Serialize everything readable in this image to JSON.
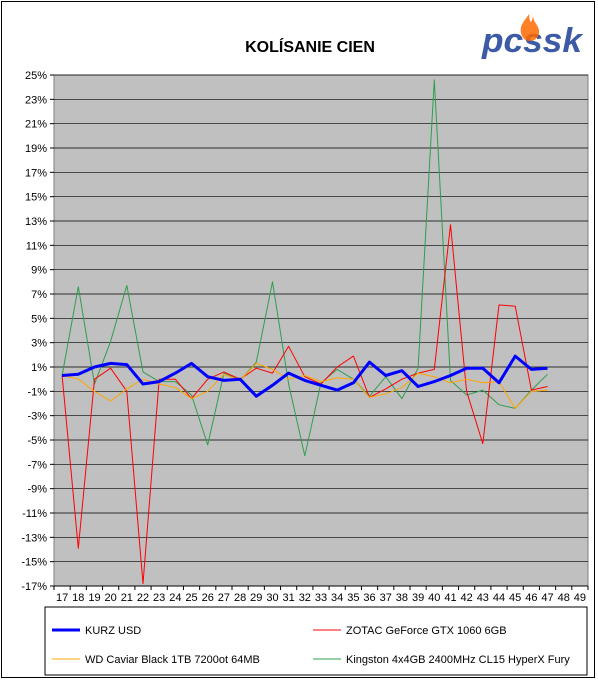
{
  "logo": {
    "text": "pcssk",
    "color": "#3c5aa6",
    "flame_color": "#ff6a00"
  },
  "chart_data": {
    "type": "line",
    "title": "KOLÍSANIE CIEN",
    "xlabel": "",
    "ylabel": "",
    "x": [
      17,
      18,
      19,
      20,
      21,
      22,
      23,
      24,
      25,
      26,
      27,
      28,
      29,
      30,
      31,
      32,
      33,
      34,
      35,
      36,
      37,
      38,
      39,
      40,
      41,
      42,
      43,
      44,
      45,
      46,
      47,
      48,
      49
    ],
    "ylim": [
      -17,
      25
    ],
    "yticks": [
      25,
      23,
      21,
      19,
      17,
      15,
      13,
      11,
      9,
      7,
      5,
      3,
      1,
      -1,
      -3,
      -5,
      -7,
      -9,
      -11,
      -13,
      -15,
      -17
    ],
    "ytick_labels": [
      "25%",
      "23%",
      "21%",
      "19%",
      "17%",
      "15%",
      "13%",
      "11%",
      "9%",
      "7%",
      "5%",
      "3%",
      "1%",
      "-1%",
      "-3%",
      "-5%",
      "-7%",
      "-9%",
      "-11%",
      "-13%",
      "-15%",
      "-17%"
    ],
    "plot_background": "#c0c0c0",
    "grid": true,
    "legend_position": "bottom",
    "series": [
      {
        "name": "KURZ USD",
        "color": "#0000ff",
        "width": 3,
        "x": [
          17,
          18,
          19,
          20,
          21,
          22,
          23,
          24,
          25,
          26,
          27,
          28,
          29,
          30,
          31,
          32,
          33,
          34,
          35,
          36,
          37,
          38,
          39,
          40,
          41,
          42,
          43,
          44,
          45,
          46,
          47
        ],
        "values": [
          0.3,
          0.4,
          1.0,
          1.3,
          1.2,
          -0.4,
          -0.2,
          0.5,
          1.3,
          0.2,
          -0.1,
          0.0,
          -1.4,
          -0.5,
          0.5,
          -0.1,
          -0.5,
          -0.9,
          -0.3,
          1.4,
          0.3,
          0.7,
          -0.6,
          -0.2,
          0.3,
          0.9,
          0.9,
          -0.3,
          1.9,
          0.8,
          0.9
        ]
      },
      {
        "name": "ZOTAC GeForce GTX 1060 6GB",
        "color": "#ff0000",
        "width": 1,
        "x": [
          17,
          18,
          19,
          20,
          21,
          22,
          23,
          24,
          25,
          26,
          27,
          28,
          29,
          30,
          31,
          32,
          33,
          34,
          35,
          36,
          37,
          38,
          39,
          40,
          41,
          42,
          43,
          44,
          45,
          46,
          47
        ],
        "values": [
          0.3,
          -13.9,
          0.0,
          0.9,
          -1.0,
          -16.8,
          0.0,
          0.0,
          -1.6,
          0.0,
          0.6,
          0.0,
          0.9,
          0.5,
          2.7,
          0.2,
          -0.4,
          1.0,
          1.9,
          -1.5,
          -0.8,
          0.0,
          0.5,
          0.8,
          12.7,
          -1.0,
          -5.3,
          6.1,
          6.0,
          -0.9,
          -0.6
        ]
      },
      {
        "name": "WD Caviar Black 1TB 7200ot 64MB",
        "color": "#ffa500",
        "width": 1,
        "x": [
          17,
          18,
          19,
          20,
          21,
          22,
          23,
          24,
          25,
          26,
          27,
          28,
          29,
          30,
          31,
          32,
          33,
          34,
          35,
          36,
          37,
          38,
          39,
          40,
          41,
          42,
          43,
          44,
          45,
          46,
          47
        ],
        "values": [
          0.3,
          0.0,
          -1.0,
          -1.8,
          -0.8,
          0.0,
          -0.4,
          -0.7,
          -1.6,
          -1.0,
          0.4,
          -0.1,
          1.3,
          0.8,
          0.0,
          0.3,
          -0.2,
          0.1,
          0.0,
          -1.5,
          -1.2,
          -0.7,
          0.5,
          0.2,
          -0.3,
          0.0,
          -0.3,
          -0.2,
          -2.4,
          -1.0,
          -0.9
        ]
      },
      {
        "name": "Kingston 4x4GB 2400MHz CL15 HyperX Fury",
        "color": "#2e9e4e",
        "width": 1,
        "x": [
          17,
          18,
          19,
          20,
          21,
          22,
          23,
          24,
          25,
          26,
          27,
          28,
          29,
          30,
          31,
          32,
          33,
          34,
          35,
          36,
          37,
          38,
          39,
          40,
          41,
          42,
          43,
          44,
          45,
          46,
          47
        ],
        "values": [
          0.3,
          7.6,
          -0.4,
          3.1,
          7.7,
          0.6,
          -0.2,
          -0.2,
          -1.3,
          -5.4,
          0.5,
          -0.1,
          1.4,
          8.0,
          -0.4,
          -6.3,
          -0.3,
          0.8,
          0.0,
          -1.4,
          0.2,
          -1.6,
          0.9,
          24.6,
          -0.1,
          -1.3,
          -0.9,
          -2.1,
          -2.4,
          -0.9,
          0.4
        ]
      }
    ]
  }
}
